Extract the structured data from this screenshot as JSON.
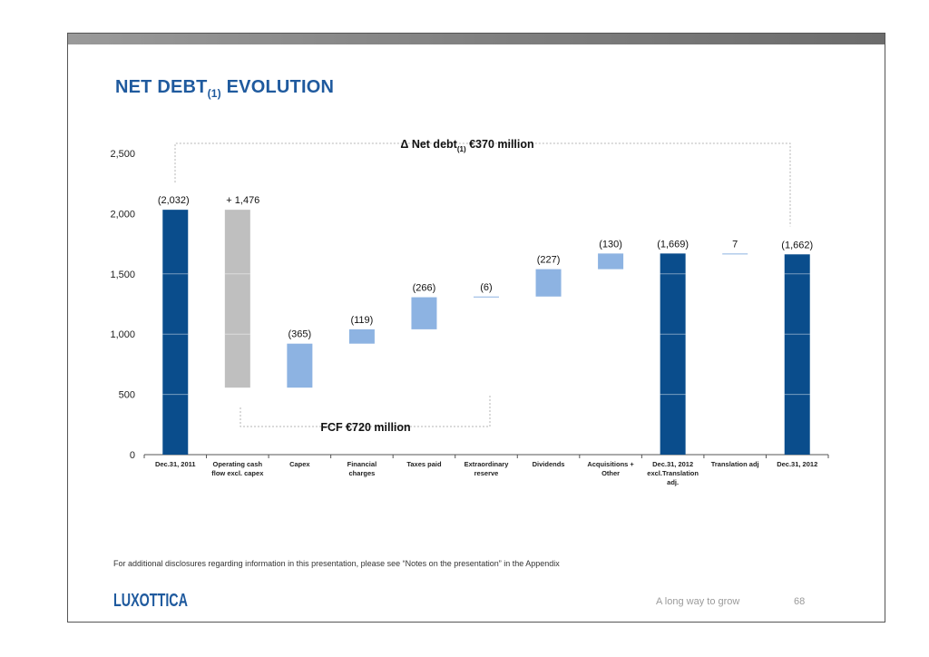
{
  "slide": {
    "title_main": "NET DEBT",
    "title_sub": "(1)",
    "title_end": " EVOLUTION",
    "footnote": "For additional disclosures regarding information in this presentation, please see “Notes on the presentation” in the Appendix",
    "logo_text": "LUXOTTICA",
    "tagline": "A long way to grow",
    "page_number": "68"
  },
  "colors": {
    "dark_blue": "#0a4d8c",
    "light_blue": "#8db3e2",
    "gray": "#bfbfbf",
    "title_blue": "#1f5a9e"
  },
  "chart_data": {
    "type": "bar",
    "subtype": "waterfall",
    "ylim": [
      0,
      2500
    ],
    "yticks": [
      "2,500",
      "2,000",
      "1,500",
      "1,000",
      "500",
      "0"
    ],
    "ytick_values": [
      2500,
      2000,
      1500,
      1000,
      500,
      0
    ],
    "categories": [
      [
        "Dec.31, 2011"
      ],
      [
        "Operating cash",
        "flow excl. capex"
      ],
      [
        "Capex"
      ],
      [
        "Financial",
        "charges"
      ],
      [
        "Taxes paid"
      ],
      [
        "Extraordinary",
        "reserve"
      ],
      [
        "Dividends"
      ],
      [
        "Acquisitions +",
        "Other"
      ],
      [
        "Dec.31, 2012",
        "excl.Translation",
        "adj."
      ],
      [
        "Translation adj"
      ],
      [
        "Dec.31, 2012"
      ]
    ],
    "bars": [
      {
        "label": "(2,032)",
        "bottom": 0,
        "top": 2032,
        "color": "dark_blue"
      },
      {
        "label": "+ 1,476",
        "bottom": 556,
        "top": 2032,
        "color": "gray"
      },
      {
        "label": "(365)",
        "bottom": 556,
        "top": 921,
        "color": "light_blue"
      },
      {
        "label": "(119)",
        "bottom": 921,
        "top": 1040,
        "color": "light_blue"
      },
      {
        "label": "(266)",
        "bottom": 1040,
        "top": 1306,
        "color": "light_blue"
      },
      {
        "label": "(6)",
        "bottom": 1306,
        "top": 1312,
        "color": "light_blue"
      },
      {
        "label": "(227)",
        "bottom": 1312,
        "top": 1539,
        "color": "light_blue"
      },
      {
        "label": "(130)",
        "bottom": 1539,
        "top": 1669,
        "color": "light_blue"
      },
      {
        "label": "(1,669)",
        "bottom": 0,
        "top": 1669,
        "color": "dark_blue"
      },
      {
        "label": "7",
        "bottom": 1662,
        "top": 1669,
        "color": "light_blue"
      },
      {
        "label": "(1,662)",
        "bottom": 0,
        "top": 1662,
        "color": "dark_blue"
      }
    ],
    "annotations": {
      "net_debt_prefix": "Δ Net debt",
      "net_debt_sub": "(1)",
      "net_debt_value": " €370 million",
      "fcf": "FCF €720 million"
    }
  }
}
